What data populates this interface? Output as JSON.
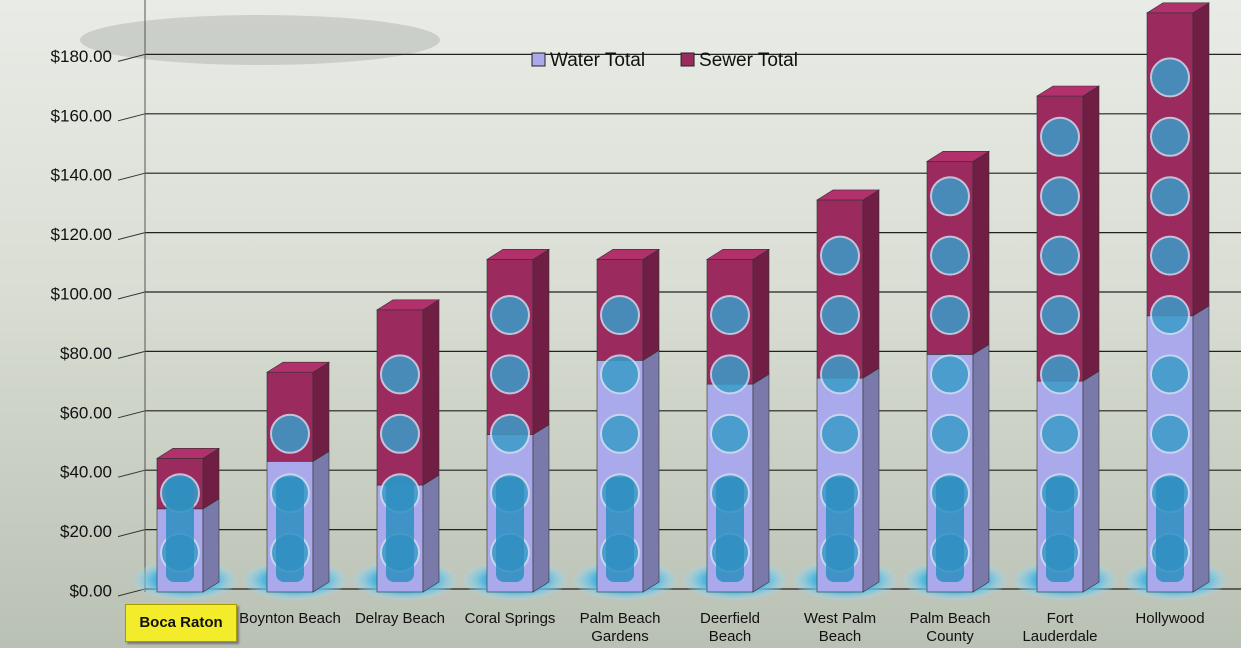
{
  "chart_data": {
    "type": "stacked_bar_3d",
    "categories": [
      "Boca Raton",
      "Boynton Beach",
      "Delray Beach",
      "Coral Springs",
      "Palm Beach Gardens",
      "Deerfield Beach",
      "West Palm Beach",
      "Palm Beach County",
      "Fort Lauderdale",
      "Hollywood"
    ],
    "series": [
      {
        "name": "Water Total",
        "color": "#a9a9ec",
        "values": [
          28,
          44,
          36,
          53,
          78,
          70,
          72,
          80,
          71,
          93
        ]
      },
      {
        "name": "Sewer Total",
        "color": "#9b2a5e",
        "values": [
          17,
          30,
          59,
          59,
          34,
          42,
          60,
          65,
          96,
          102
        ]
      }
    ],
    "ylim": [
      0,
      200
    ],
    "yticks": [
      {
        "value": 0,
        "label": "$0.00"
      },
      {
        "value": 20,
        "label": "$20.00"
      },
      {
        "value": 40,
        "label": "$40.00"
      },
      {
        "value": 60,
        "label": "$60.00"
      },
      {
        "value": 80,
        "label": "$80.00"
      },
      {
        "value": 100,
        "label": "$100.00"
      },
      {
        "value": 120,
        "label": "$120.00"
      },
      {
        "value": 140,
        "label": "$140.00"
      },
      {
        "value": 160,
        "label": "$160.00"
      },
      {
        "value": 180,
        "label": "$180.00"
      }
    ],
    "grid": true,
    "legend": "top",
    "highlight": 0
  }
}
